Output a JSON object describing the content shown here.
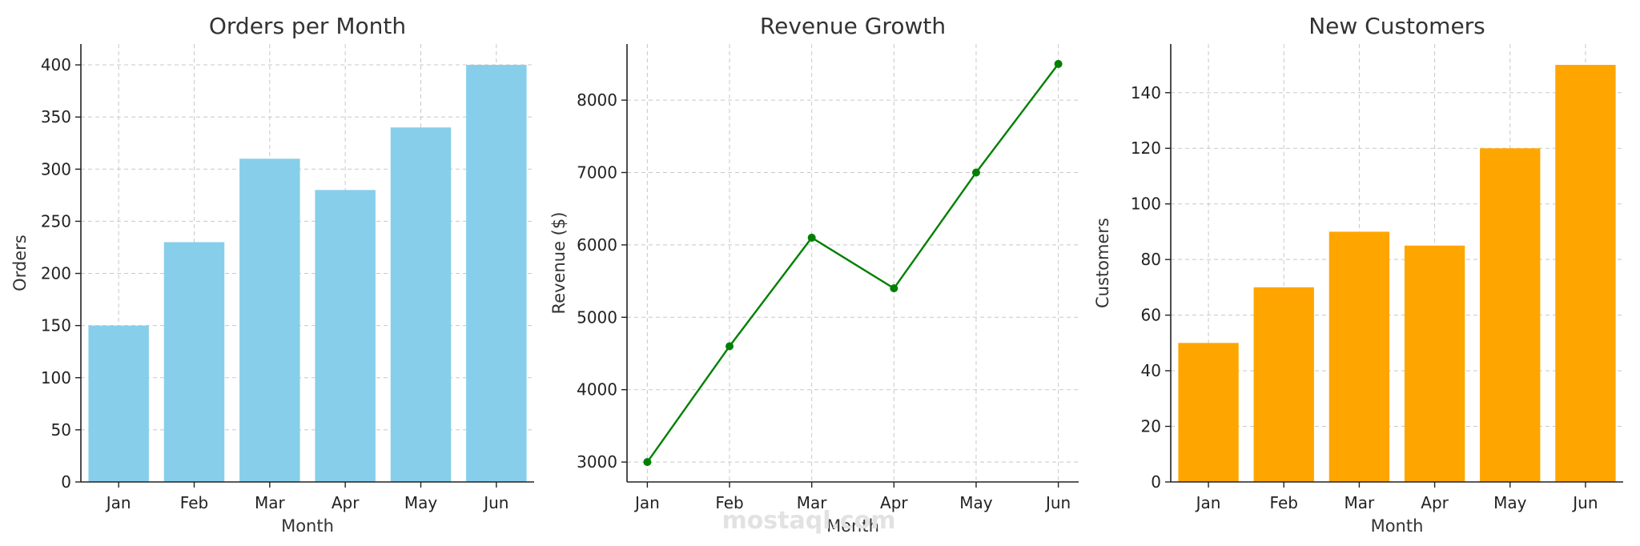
{
  "watermark": {
    "text": "mostaql.com"
  },
  "colors": {
    "bar1": "#87ceeb",
    "line": "#008000",
    "bar3": "#ffa500"
  },
  "chart_data": [
    {
      "type": "bar",
      "title": "Orders per Month",
      "xlabel": "Month",
      "ylabel": "Orders",
      "categories": [
        "Jan",
        "Feb",
        "Mar",
        "Apr",
        "May",
        "Jun"
      ],
      "values": [
        150,
        230,
        310,
        280,
        340,
        400
      ],
      "ylim": [
        0,
        420
      ],
      "yticks": [
        0,
        50,
        100,
        150,
        200,
        250,
        300,
        350,
        400
      ],
      "grid": true,
      "color": "#87ceeb"
    },
    {
      "type": "line",
      "title": "Revenue Growth",
      "xlabel": "Month",
      "ylabel": "Revenue ($)",
      "categories": [
        "Jan",
        "Feb",
        "Mar",
        "Apr",
        "May",
        "Jun"
      ],
      "values": [
        3000,
        4600,
        6100,
        5400,
        7000,
        8500
      ],
      "ylim": [
        2725,
        8775
      ],
      "yticks": [
        3000,
        4000,
        5000,
        6000,
        7000,
        8000
      ],
      "grid": true,
      "color": "#008000",
      "markers": true
    },
    {
      "type": "bar",
      "title": "New Customers",
      "xlabel": "Month",
      "ylabel": "Customers",
      "categories": [
        "Jan",
        "Feb",
        "Mar",
        "Apr",
        "May",
        "Jun"
      ],
      "values": [
        50,
        70,
        90,
        85,
        120,
        150
      ],
      "ylim": [
        0,
        157.5
      ],
      "yticks": [
        0,
        20,
        40,
        60,
        80,
        100,
        120,
        140
      ],
      "grid": true,
      "color": "#ffa500"
    }
  ]
}
